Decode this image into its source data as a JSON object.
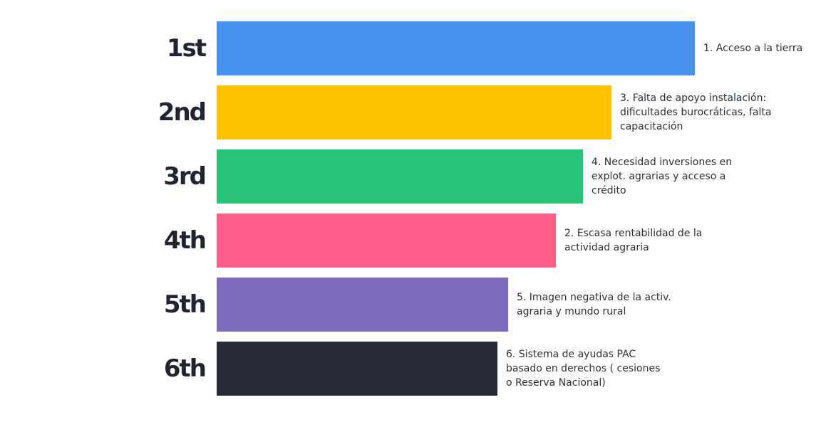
{
  "chart_data": {
    "type": "bar",
    "orientation": "horizontal",
    "ranks": [
      "1st",
      "2nd",
      "3rd",
      "4th",
      "5th",
      "6th"
    ],
    "categories": [
      [
        "1. Acceso a la tierra"
      ],
      [
        "3. Falta de apoyo instalación:",
        "dificultades burocráticas, falta",
        "capacitación"
      ],
      [
        "4. Necesidad inversiones en",
        "explot. agrarias y acceso a",
        "crédito"
      ],
      [
        "2. Escasa rentabilidad de la",
        "actividad agraria"
      ],
      [
        "5. Imagen negativa de la activ.",
        "agraria y mundo rural"
      ],
      [
        "6. Sistema de ayudas PAC",
        "basado en derechos ( cesiones",
        "o Reserva Nacional)"
      ]
    ],
    "values": [
      100,
      82.6,
      76.6,
      71,
      61,
      58.7
    ],
    "colors": [
      "#4593ee",
      "#fec200",
      "#29c47a",
      "#fd5f8a",
      "#7e6bbd",
      "#262a36"
    ],
    "xlim": [
      0,
      100
    ],
    "grid": false,
    "legend": "none"
  }
}
